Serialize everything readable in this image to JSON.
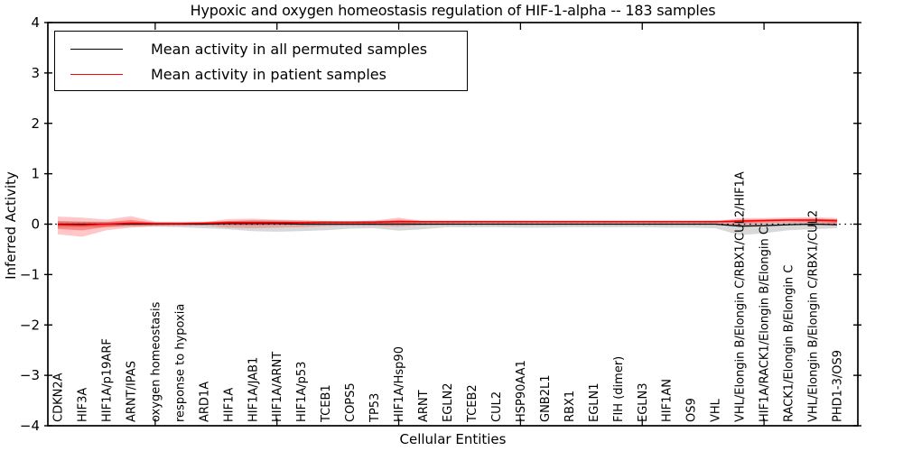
{
  "figure": {
    "title": "Hypoxic and oxygen homeostasis regulation of HIF-1-alpha -- 183 samples",
    "xlabel": "Cellular Entities",
    "ylabel": "Inferred Activity"
  },
  "legend": {
    "items": [
      {
        "label": "Mean activity in all permuted samples",
        "color": "#000000"
      },
      {
        "label": "Mean activity in patient samples",
        "color": "#ff0000"
      }
    ]
  },
  "chart_data": {
    "type": "line",
    "title": "Hypoxic and oxygen homeostasis regulation of HIF-1-alpha -- 183 samples",
    "xlabel": "Cellular Entities",
    "ylabel": "Inferred Activity",
    "ylim": [
      -4,
      4
    ],
    "grid": false,
    "legend_position": "upper left",
    "yticks": [
      {
        "value": 4,
        "label": "4"
      },
      {
        "value": 3,
        "label": "3"
      },
      {
        "value": 2,
        "label": "2"
      },
      {
        "value": 1,
        "label": "1"
      },
      {
        "value": 0,
        "label": "0"
      },
      {
        "value": -1,
        "label": "−1"
      },
      {
        "value": -2,
        "label": "−2"
      },
      {
        "value": -3,
        "label": "−3"
      },
      {
        "value": -4,
        "label": "−4"
      }
    ],
    "x_major_tick_indices": [
      4,
      9,
      14,
      19,
      24,
      29
    ],
    "categories": [
      "CDKN2A",
      "HIF3A",
      "HIF1A/p19ARF",
      "ARNT/IPAS",
      "oxygen homeostasis",
      "response to hypoxia",
      "ARD1A",
      "HIF1A",
      "HIF1A/JAB1",
      "HIF1A/ARNT",
      "HIF1A/p53",
      "TCEB1",
      "COPS5",
      "TP53",
      "HIF1A/Hsp90",
      "ARNT",
      "EGLN2",
      "TCEB2",
      "CUL2",
      "HSP90AA1",
      "GNB2L1",
      "RBX1",
      "EGLN1",
      "FIH (dimer)",
      "EGLN3",
      "HIF1AN",
      "OS9",
      "VHL",
      "VHL/Elongin B/Elongin C/RBX1/CUL2/HIF1A",
      "HIF1A/RACK1/Elongin B/Elongin C",
      "RACK1/Elongin B/Elongin C",
      "VHL/Elongin B/Elongin C/RBX1/CUL2",
      "PHD1-3/OS9"
    ],
    "series": [
      {
        "id": "permuted-mean-line",
        "name": "Mean activity in all permuted samples",
        "color": "#000000",
        "width": 1.3,
        "values": [
          0,
          0,
          0,
          0,
          0,
          0,
          0,
          0.01,
          0.01,
          0.01,
          0,
          0,
          0,
          0,
          0,
          0,
          0,
          0,
          0,
          0,
          0,
          0,
          0,
          0,
          0,
          0,
          0,
          0,
          -0.04,
          -0.03,
          -0.01,
          0,
          -0.01
        ]
      },
      {
        "id": "patient-mean-line",
        "name": "Mean activity in patient samples",
        "color": "#ff0000",
        "width": 1.6,
        "values": [
          -0.01,
          -0.02,
          0,
          0.02,
          0.01,
          0.01,
          0.02,
          0.03,
          0.03,
          0.03,
          0.03,
          0.04,
          0.04,
          0.04,
          0.05,
          0.05,
          0.05,
          0.05,
          0.05,
          0.05,
          0.05,
          0.05,
          0.05,
          0.05,
          0.05,
          0.05,
          0.05,
          0.05,
          0.06,
          0.07,
          0.08,
          0.08,
          0.07
        ]
      }
    ],
    "bands": [
      {
        "id": "permuted-band",
        "name": "permuted samples spread",
        "color": "#999999",
        "opacity": 0.38,
        "upper": [
          0.05,
          0.05,
          0.05,
          0.05,
          0.04,
          0.05,
          0.05,
          0.06,
          0.08,
          0.08,
          0.07,
          0.06,
          0.06,
          0.07,
          0.06,
          0.05,
          0.06,
          0.06,
          0.06,
          0.06,
          0.06,
          0.06,
          0.06,
          0.06,
          0.06,
          0.06,
          0.06,
          0.07,
          0.05,
          0.04,
          0.05,
          0.1,
          0.08
        ],
        "lower": [
          -0.06,
          -0.06,
          -0.06,
          -0.05,
          -0.05,
          -0.06,
          -0.08,
          -0.1,
          -0.14,
          -0.15,
          -0.14,
          -0.12,
          -0.09,
          -0.08,
          -0.13,
          -0.1,
          -0.06,
          -0.06,
          -0.06,
          -0.07,
          -0.07,
          -0.06,
          -0.06,
          -0.06,
          -0.06,
          -0.07,
          -0.07,
          -0.08,
          -0.22,
          -0.18,
          -0.12,
          -0.1,
          -0.08
        ]
      },
      {
        "id": "patient-band-outer",
        "name": "patient samples spread (outer)",
        "color": "#ff0000",
        "opacity": 0.22,
        "upper": [
          0.15,
          0.13,
          0.09,
          0.16,
          0.05,
          0.04,
          0.04,
          0.1,
          0.11,
          0.09,
          0.08,
          0.06,
          0.05,
          0.07,
          0.13,
          0.06,
          0.05,
          0.04,
          0.04,
          0.04,
          0.04,
          0.04,
          0.04,
          0.04,
          0.04,
          0.04,
          0.04,
          0.05,
          0.12,
          0.12,
          0.13,
          0.14,
          0.12
        ],
        "lower": [
          -0.2,
          -0.25,
          -0.12,
          -0.07,
          -0.04,
          -0.03,
          -0.03,
          -0.07,
          -0.08,
          -0.07,
          -0.06,
          -0.04,
          -0.03,
          -0.03,
          -0.05,
          -0.02,
          -0.01,
          0,
          0,
          0.01,
          0.01,
          0.01,
          0.01,
          0.01,
          0.01,
          0.01,
          0.01,
          0,
          -0.02,
          0,
          0.02,
          0.01,
          -0.03
        ]
      },
      {
        "id": "patient-band-inner",
        "name": "patient samples spread (inner)",
        "color": "#ff0000",
        "opacity": 0.32,
        "upper": [
          0.062,
          0.048,
          0.041,
          0.083,
          0.028,
          0.024,
          0.029,
          0.062,
          0.066,
          0.057,
          0.053,
          0.049,
          0.045,
          0.054,
          0.086,
          0.055,
          0.05,
          0.046,
          0.046,
          0.046,
          0.046,
          0.046,
          0.046,
          0.046,
          0.046,
          0.046,
          0.046,
          0.05,
          0.087,
          0.093,
          0.103,
          0.107,
          0.093
        ],
        "lower": [
          -0.096,
          -0.124,
          -0.054,
          -0.021,
          -0.013,
          -0.008,
          -0.003,
          -0.015,
          -0.02,
          -0.015,
          -0.011,
          0.004,
          0.009,
          0.009,
          0.005,
          0.019,
          0.023,
          0.028,
          0.028,
          0.032,
          0.032,
          0.032,
          0.032,
          0.032,
          0.032,
          0.032,
          0.032,
          0.028,
          0.024,
          0.039,
          0.053,
          0.049,
          0.025
        ]
      }
    ],
    "zero_line": {
      "value": 0,
      "style": "dotted",
      "color": "#000000"
    }
  }
}
